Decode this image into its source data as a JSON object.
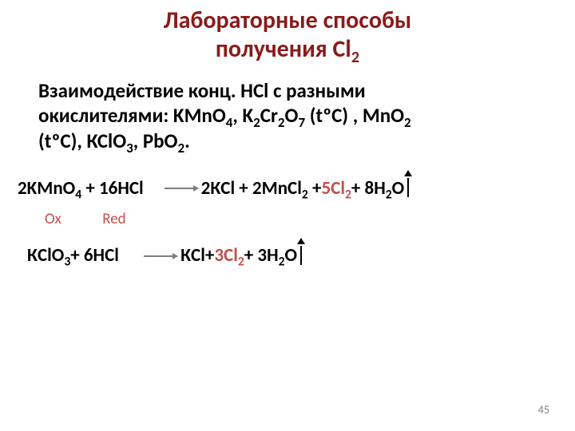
{
  "colors": {
    "title": "#8b1a1a",
    "text": "#000000",
    "ox": "#c0504d",
    "red": "#c0504d",
    "highlight": "#c0504d",
    "arrow": "#7f7f7f",
    "background": "#ffffff",
    "pagenum": "#808080"
  },
  "fonts": {
    "title_size": 30,
    "intro_size": 25,
    "eq_size": 23,
    "label_size": 19,
    "pagenum_size": 14
  },
  "title": {
    "line1": "Лабораторные способы",
    "line2_a": "получения Cl",
    "line2_sub": "2"
  },
  "intro": {
    "t1": "Взаимодействие конц. HCl  с разными",
    "t2a": "окислителями: KMnO",
    "s1": "4",
    "t2b": ", K",
    "s2": "2",
    "t2c": "Cr",
    "s3": "2",
    "t2d": "O",
    "s4": "7",
    "t2e": " (tºС) , MnO",
    "s5": "2",
    "t3a": "(tºС), КСlO",
    "s6": "3",
    "t3b": ", PbO",
    "s7": "2",
    "t3c": "."
  },
  "eq1": {
    "a": "2KMnO",
    "a_sub": "4",
    "b": "+ 16HCl",
    "arrow_width": 42,
    "c": "2КCl + 2MnCl",
    "c_sub": "2",
    "d": "+ ",
    "hl": "5Cl",
    "hl_sub": "2",
    "e": " + 8H",
    "e_sub": "2",
    "f": "O",
    "up_arrow_height": 28
  },
  "labels": {
    "ox": "Ox",
    "red": "Red"
  },
  "eq2": {
    "a": "КClO",
    "a_sub": "3",
    "b": "  +   6HCl",
    "arrow_width": 42,
    "c": "КCl ",
    "d": "+ ",
    "hl": "3Cl",
    "hl_sub": "2",
    "e": " + 3H",
    "e_sub": "2",
    "f": "O",
    "up_arrow_height": 28
  },
  "page_number": "45"
}
